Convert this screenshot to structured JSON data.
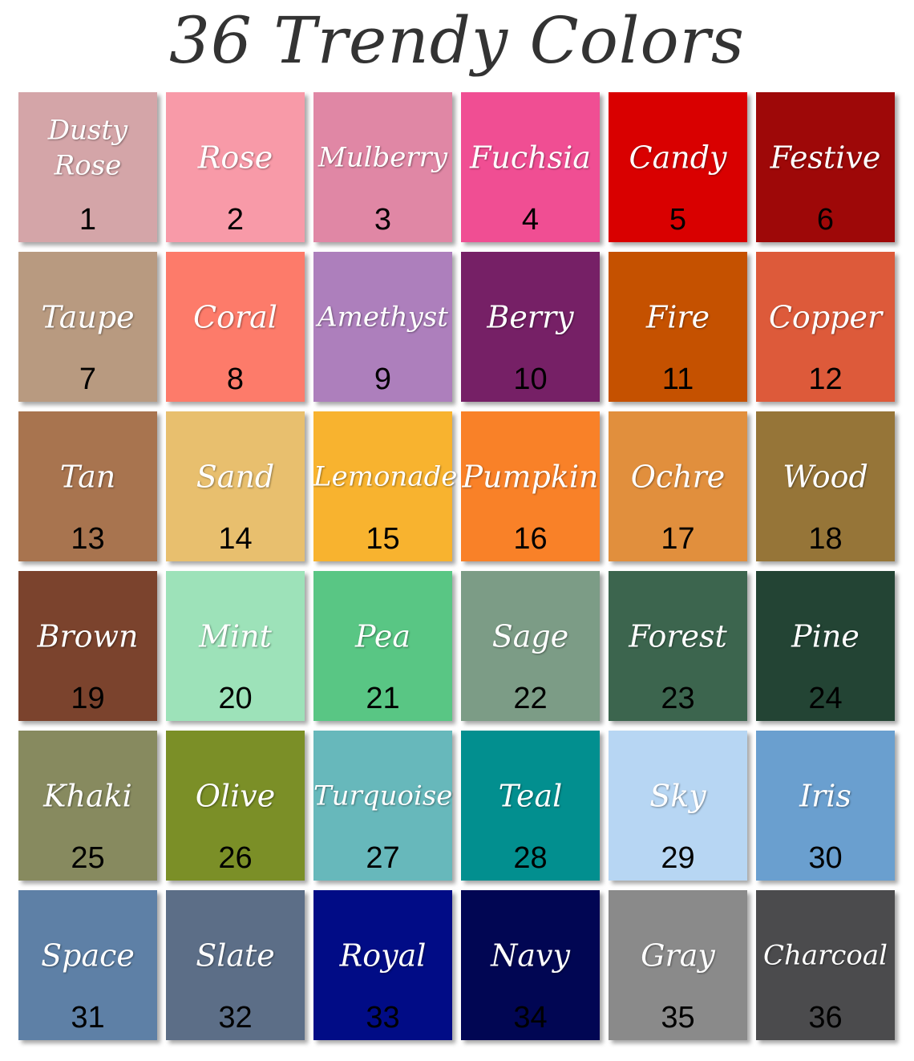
{
  "title": "36 Trendy Colors",
  "swatches": [
    {
      "name": "Dusty\nRose",
      "number": "1",
      "color": "#d4a5a8"
    },
    {
      "name": "Rose",
      "number": "2",
      "color": "#f89aa8"
    },
    {
      "name": "Mulberry",
      "number": "3",
      "color": "#e087a5"
    },
    {
      "name": "Fuchsia",
      "number": "4",
      "color": "#f04e93"
    },
    {
      "name": "Candy",
      "number": "5",
      "color": "#d90000"
    },
    {
      "name": "Festive",
      "number": "6",
      "color": "#9e0808"
    },
    {
      "name": "Taupe",
      "number": "7",
      "color": "#b89a80"
    },
    {
      "name": "Coral",
      "number": "8",
      "color": "#fd7b6a"
    },
    {
      "name": "Amethyst",
      "number": "9",
      "color": "#ad7fbc"
    },
    {
      "name": "Berry",
      "number": "10",
      "color": "#762066"
    },
    {
      "name": "Fire",
      "number": "11",
      "color": "#c55100"
    },
    {
      "name": "Copper",
      "number": "12",
      "color": "#dd5a3a"
    },
    {
      "name": "Tan",
      "number": "13",
      "color": "#a8744f"
    },
    {
      "name": "Sand",
      "number": "14",
      "color": "#e8bf6e"
    },
    {
      "name": "Lemonade",
      "number": "15",
      "color": "#f8b32f"
    },
    {
      "name": "Pumpkin",
      "number": "16",
      "color": "#f98128"
    },
    {
      "name": "Ochre",
      "number": "17",
      "color": "#e18f3d"
    },
    {
      "name": "Wood",
      "number": "18",
      "color": "#967538"
    },
    {
      "name": "Brown",
      "number": "19",
      "color": "#7b432d"
    },
    {
      "name": "Mint",
      "number": "20",
      "color": "#9de2b9"
    },
    {
      "name": "Pea",
      "number": "21",
      "color": "#59c684"
    },
    {
      "name": "Sage",
      "number": "22",
      "color": "#7c9c86"
    },
    {
      "name": "Forest",
      "number": "23",
      "color": "#3c654e"
    },
    {
      "name": "Pine",
      "number": "24",
      "color": "#234434"
    },
    {
      "name": "Khaki",
      "number": "25",
      "color": "#878a5f"
    },
    {
      "name": "Olive",
      "number": "26",
      "color": "#7b8f27"
    },
    {
      "name": "Turquoise",
      "number": "27",
      "color": "#67b8bb"
    },
    {
      "name": "Teal",
      "number": "28",
      "color": "#028f8f"
    },
    {
      "name": "Sky",
      "number": "29",
      "color": "#b7d6f3"
    },
    {
      "name": "Iris",
      "number": "30",
      "color": "#6a9fcf"
    },
    {
      "name": "Space",
      "number": "31",
      "color": "#5e80a6"
    },
    {
      "name": "Slate",
      "number": "32",
      "color": "#5c6e87"
    },
    {
      "name": "Royal",
      "number": "33",
      "color": "#010c86"
    },
    {
      "name": "Navy",
      "number": "34",
      "color": "#010653"
    },
    {
      "name": "Gray",
      "number": "35",
      "color": "#8a8a8a"
    },
    {
      "name": "Charcoal",
      "number": "36",
      "color": "#4b4b4d"
    }
  ]
}
